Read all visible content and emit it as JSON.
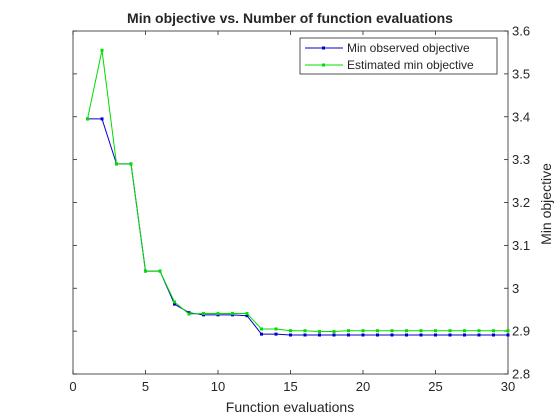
{
  "chart_data": {
    "type": "line",
    "title": "Min objective vs. Number of function evaluations",
    "xlabel": "Function evaluations",
    "ylabel": "Min objective",
    "xlim": [
      0,
      30
    ],
    "ylim": [
      2.8,
      3.6
    ],
    "xticks": [
      0,
      5,
      10,
      15,
      20,
      25,
      30
    ],
    "yticks": [
      2.8,
      2.9,
      3.0,
      3.1,
      3.2,
      3.3,
      3.4,
      3.5,
      3.6
    ],
    "xtick_labels": [
      "0",
      "5",
      "10",
      "15",
      "20",
      "25",
      "30"
    ],
    "ytick_labels": [
      "2.8",
      "2.9",
      "3",
      "3.1",
      "3.2",
      "3.3",
      "3.4",
      "3.5",
      "3.6"
    ],
    "y_axis_side": "right",
    "grid": false,
    "legend_position": "top-right",
    "x": [
      1,
      2,
      3,
      4,
      5,
      6,
      7,
      8,
      9,
      10,
      11,
      12,
      13,
      14,
      15,
      16,
      17,
      18,
      19,
      20,
      21,
      22,
      23,
      24,
      25,
      26,
      27,
      28,
      29,
      30
    ],
    "series": [
      {
        "name": "Min observed objective",
        "color": "#0000cc",
        "values": [
          3.395,
          3.395,
          3.29,
          3.29,
          3.04,
          3.04,
          2.963,
          2.943,
          2.938,
          2.938,
          2.938,
          2.936,
          2.893,
          2.893,
          2.891,
          2.891,
          2.891,
          2.891,
          2.891,
          2.891,
          2.891,
          2.891,
          2.891,
          2.891,
          2.891,
          2.891,
          2.891,
          2.891,
          2.891,
          2.891
        ]
      },
      {
        "name": "Estimated min objective",
        "color": "#00dd00",
        "values": [
          3.395,
          3.555,
          3.29,
          3.29,
          3.04,
          3.04,
          2.968,
          2.94,
          2.941,
          2.941,
          2.941,
          2.941,
          2.905,
          2.905,
          2.901,
          2.901,
          2.899,
          2.899,
          2.901,
          2.901,
          2.901,
          2.901,
          2.901,
          2.901,
          2.901,
          2.901,
          2.901,
          2.901,
          2.901,
          2.901
        ]
      }
    ]
  }
}
